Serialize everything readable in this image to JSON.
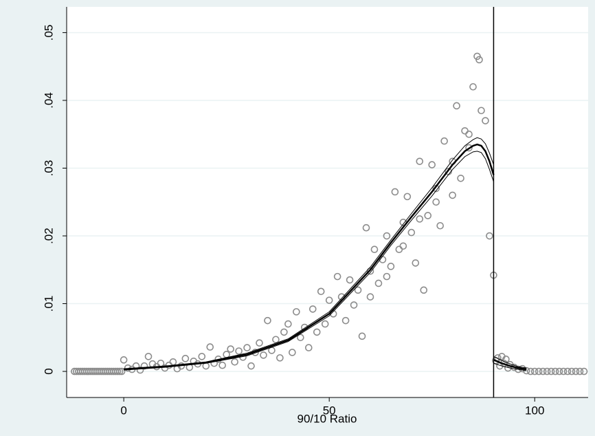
{
  "chart_data": {
    "type": "scatter",
    "x_label": "90/10 Ratio",
    "xlim": [
      -13.9,
      113
    ],
    "ylim": [
      -0.00385,
      0.0538
    ],
    "xticks": [
      0,
      50,
      100
    ],
    "yticks": [
      0,
      {
        "value": 0.01,
        "label": ".01"
      },
      {
        "value": 0.02,
        "label": ".02"
      },
      {
        "value": 0.03,
        "label": ".03"
      },
      {
        "value": 0.04,
        "label": ".04"
      },
      {
        "value": 0.05,
        "label": ".05"
      }
    ],
    "grid": true,
    "xline": 90,
    "series": [
      {
        "type": "scatter",
        "color": "#8c8c8c",
        "x": [
          -12,
          -11.5,
          -11,
          -10.5,
          -10,
          -9.5,
          -9,
          -8.5,
          -8,
          -7.5,
          -7,
          -6.5,
          -6,
          -5.5,
          -5,
          -4.5,
          -4,
          -3.5,
          -3,
          -2.5,
          -2,
          -1.5,
          -1,
          -0.5,
          0,
          1,
          2,
          3,
          4,
          5,
          6,
          7,
          8,
          9,
          10,
          11,
          12,
          13,
          14,
          15,
          16,
          17,
          18,
          19,
          20,
          21,
          22,
          23,
          24,
          25,
          26,
          27,
          28,
          29,
          30,
          31,
          32,
          33,
          34,
          35,
          36,
          37,
          38,
          39,
          40,
          41,
          42,
          43,
          44,
          45,
          46,
          47,
          48,
          49,
          50,
          51,
          52,
          53,
          54,
          55,
          56,
          57,
          58,
          59,
          60,
          61,
          62,
          63,
          64,
          65,
          66,
          67,
          68,
          69,
          70,
          71,
          72,
          73,
          74,
          75,
          76,
          77,
          78,
          79,
          80,
          81,
          82,
          83,
          84,
          85,
          86,
          87,
          88,
          89,
          90,
          60,
          64,
          68,
          72,
          76,
          80,
          84,
          86.5,
          90.5,
          91,
          91.5,
          92,
          92.5,
          93,
          93.5,
          94,
          95,
          96,
          97,
          98,
          99,
          100,
          101,
          102,
          103,
          104,
          105,
          106,
          107,
          108,
          109,
          110,
          111,
          112
        ],
        "values": [
          0,
          0,
          0,
          0,
          0,
          0,
          0,
          0,
          0,
          0,
          0,
          0,
          0,
          0,
          0,
          0,
          0,
          0,
          0,
          0,
          0,
          0,
          0,
          0,
          0.0017,
          0.0005,
          0.0003,
          0.0008,
          0.0002,
          0.0008,
          0.0022,
          0.0011,
          0.0007,
          0.0012,
          0.0005,
          0.0009,
          0.0014,
          0.0004,
          0.0008,
          0.0019,
          0.0006,
          0.0015,
          0.0011,
          0.0022,
          0.0008,
          0.0036,
          0.0012,
          0.0018,
          0.0009,
          0.0025,
          0.0033,
          0.0014,
          0.003,
          0.0021,
          0.0035,
          0.0008,
          0.0028,
          0.0042,
          0.0024,
          0.0075,
          0.0031,
          0.0047,
          0.002,
          0.0058,
          0.007,
          0.0028,
          0.0088,
          0.005,
          0.0065,
          0.0035,
          0.0092,
          0.0058,
          0.0118,
          0.007,
          0.0105,
          0.0085,
          0.014,
          0.011,
          0.0075,
          0.0135,
          0.0098,
          0.012,
          0.0052,
          0.0212,
          0.0148,
          0.018,
          0.013,
          0.0165,
          0.02,
          0.0155,
          0.0265,
          0.018,
          0.022,
          0.0258,
          0.0205,
          0.016,
          0.031,
          0.012,
          0.023,
          0.0305,
          0.025,
          0.0215,
          0.034,
          0.0295,
          0.026,
          0.0392,
          0.0285,
          0.0355,
          0.033,
          0.042,
          0.0465,
          0.0385,
          0.037,
          0.02,
          0.0142,
          0.011,
          0.014,
          0.0185,
          0.0225,
          0.027,
          0.031,
          0.035,
          0.046,
          0.0016,
          0.002,
          0.0008,
          0.0022,
          0.0012,
          0.0018,
          0.0005,
          0.001,
          0.0006,
          0.0003,
          0.0004,
          0.0001,
          0,
          0,
          0,
          0,
          0,
          0,
          0,
          0,
          0,
          0,
          0,
          0,
          0,
          0
        ]
      },
      {
        "type": "line",
        "color": "#000000",
        "width": 2.5,
        "x": [
          0,
          10,
          20,
          30,
          40,
          50,
          60,
          65,
          70,
          75,
          80,
          83,
          85,
          86,
          87,
          88,
          89,
          90
        ],
        "values": [
          0.0003,
          0.0007,
          0.0013,
          0.0025,
          0.0046,
          0.0085,
          0.015,
          0.019,
          0.0228,
          0.0265,
          0.0305,
          0.0325,
          0.0333,
          0.0335,
          0.0333,
          0.0325,
          0.031,
          0.029
        ]
      },
      {
        "type": "line",
        "color": "#000000",
        "width": 1,
        "x": [
          0,
          10,
          20,
          30,
          40,
          50,
          60,
          65,
          70,
          75,
          80,
          83,
          85,
          86,
          87,
          88,
          89,
          90
        ],
        "values": [
          0.0004,
          0.0008,
          0.0014,
          0.0027,
          0.0048,
          0.0088,
          0.0154,
          0.0194,
          0.0233,
          0.0271,
          0.0312,
          0.0333,
          0.0342,
          0.0345,
          0.0343,
          0.0336,
          0.0322,
          0.0305
        ]
      },
      {
        "type": "line",
        "color": "#000000",
        "width": 1,
        "x": [
          0,
          10,
          20,
          30,
          40,
          50,
          60,
          65,
          70,
          75,
          80,
          83,
          85,
          86,
          87,
          88,
          89,
          90
        ],
        "values": [
          0.0002,
          0.0006,
          0.0012,
          0.0023,
          0.0044,
          0.0082,
          0.0146,
          0.0186,
          0.0223,
          0.0259,
          0.0298,
          0.0317,
          0.0324,
          0.0325,
          0.0323,
          0.0314,
          0.0298,
          0.028
        ]
      },
      {
        "type": "line",
        "color": "#000000",
        "width": 2.5,
        "x": [
          90,
          92,
          94,
          96,
          98
        ],
        "values": [
          0.0017,
          0.0012,
          0.0008,
          0.0005,
          0.0003
        ]
      },
      {
        "type": "line",
        "color": "#000000",
        "width": 1,
        "x": [
          90,
          92,
          94,
          96,
          98
        ],
        "values": [
          0.0022,
          0.0016,
          0.0011,
          0.0007,
          0.0005
        ]
      },
      {
        "type": "line",
        "color": "#000000",
        "width": 1,
        "x": [
          90,
          92,
          94,
          96,
          98
        ],
        "values": [
          0.0012,
          0.0008,
          0.0005,
          0.0003,
          0.0001
        ]
      }
    ]
  }
}
